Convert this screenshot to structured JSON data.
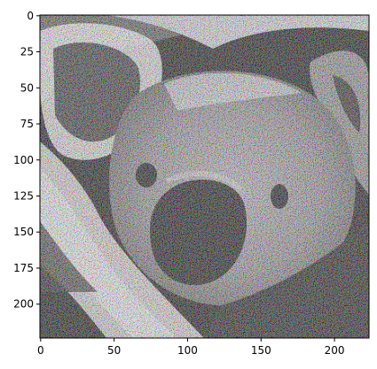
{
  "figure": {
    "kind": "image-display",
    "subject": "koala",
    "image_width": 224,
    "image_height": 224,
    "xlim": [
      -0.5,
      223.5
    ],
    "ylim": [
      223.5,
      -0.5
    ],
    "x_ticks": [
      0,
      50,
      100,
      150,
      200
    ],
    "y_ticks": [
      0,
      25,
      50,
      75,
      100,
      125,
      150,
      175,
      200
    ],
    "x_tick_labels": [
      "0",
      "50",
      "100",
      "150",
      "200"
    ],
    "y_tick_labels": [
      "0",
      "25",
      "50",
      "75",
      "100",
      "125",
      "150",
      "175",
      "200"
    ],
    "noise": "high-contrast colorful static (adversarial-style)",
    "colors": {
      "background": "#000000",
      "fur_light": "#e8e8f0",
      "fur_mid": "#9a8f8f",
      "eye": "#000000",
      "nose": "#000000",
      "spine": "#000000"
    }
  }
}
